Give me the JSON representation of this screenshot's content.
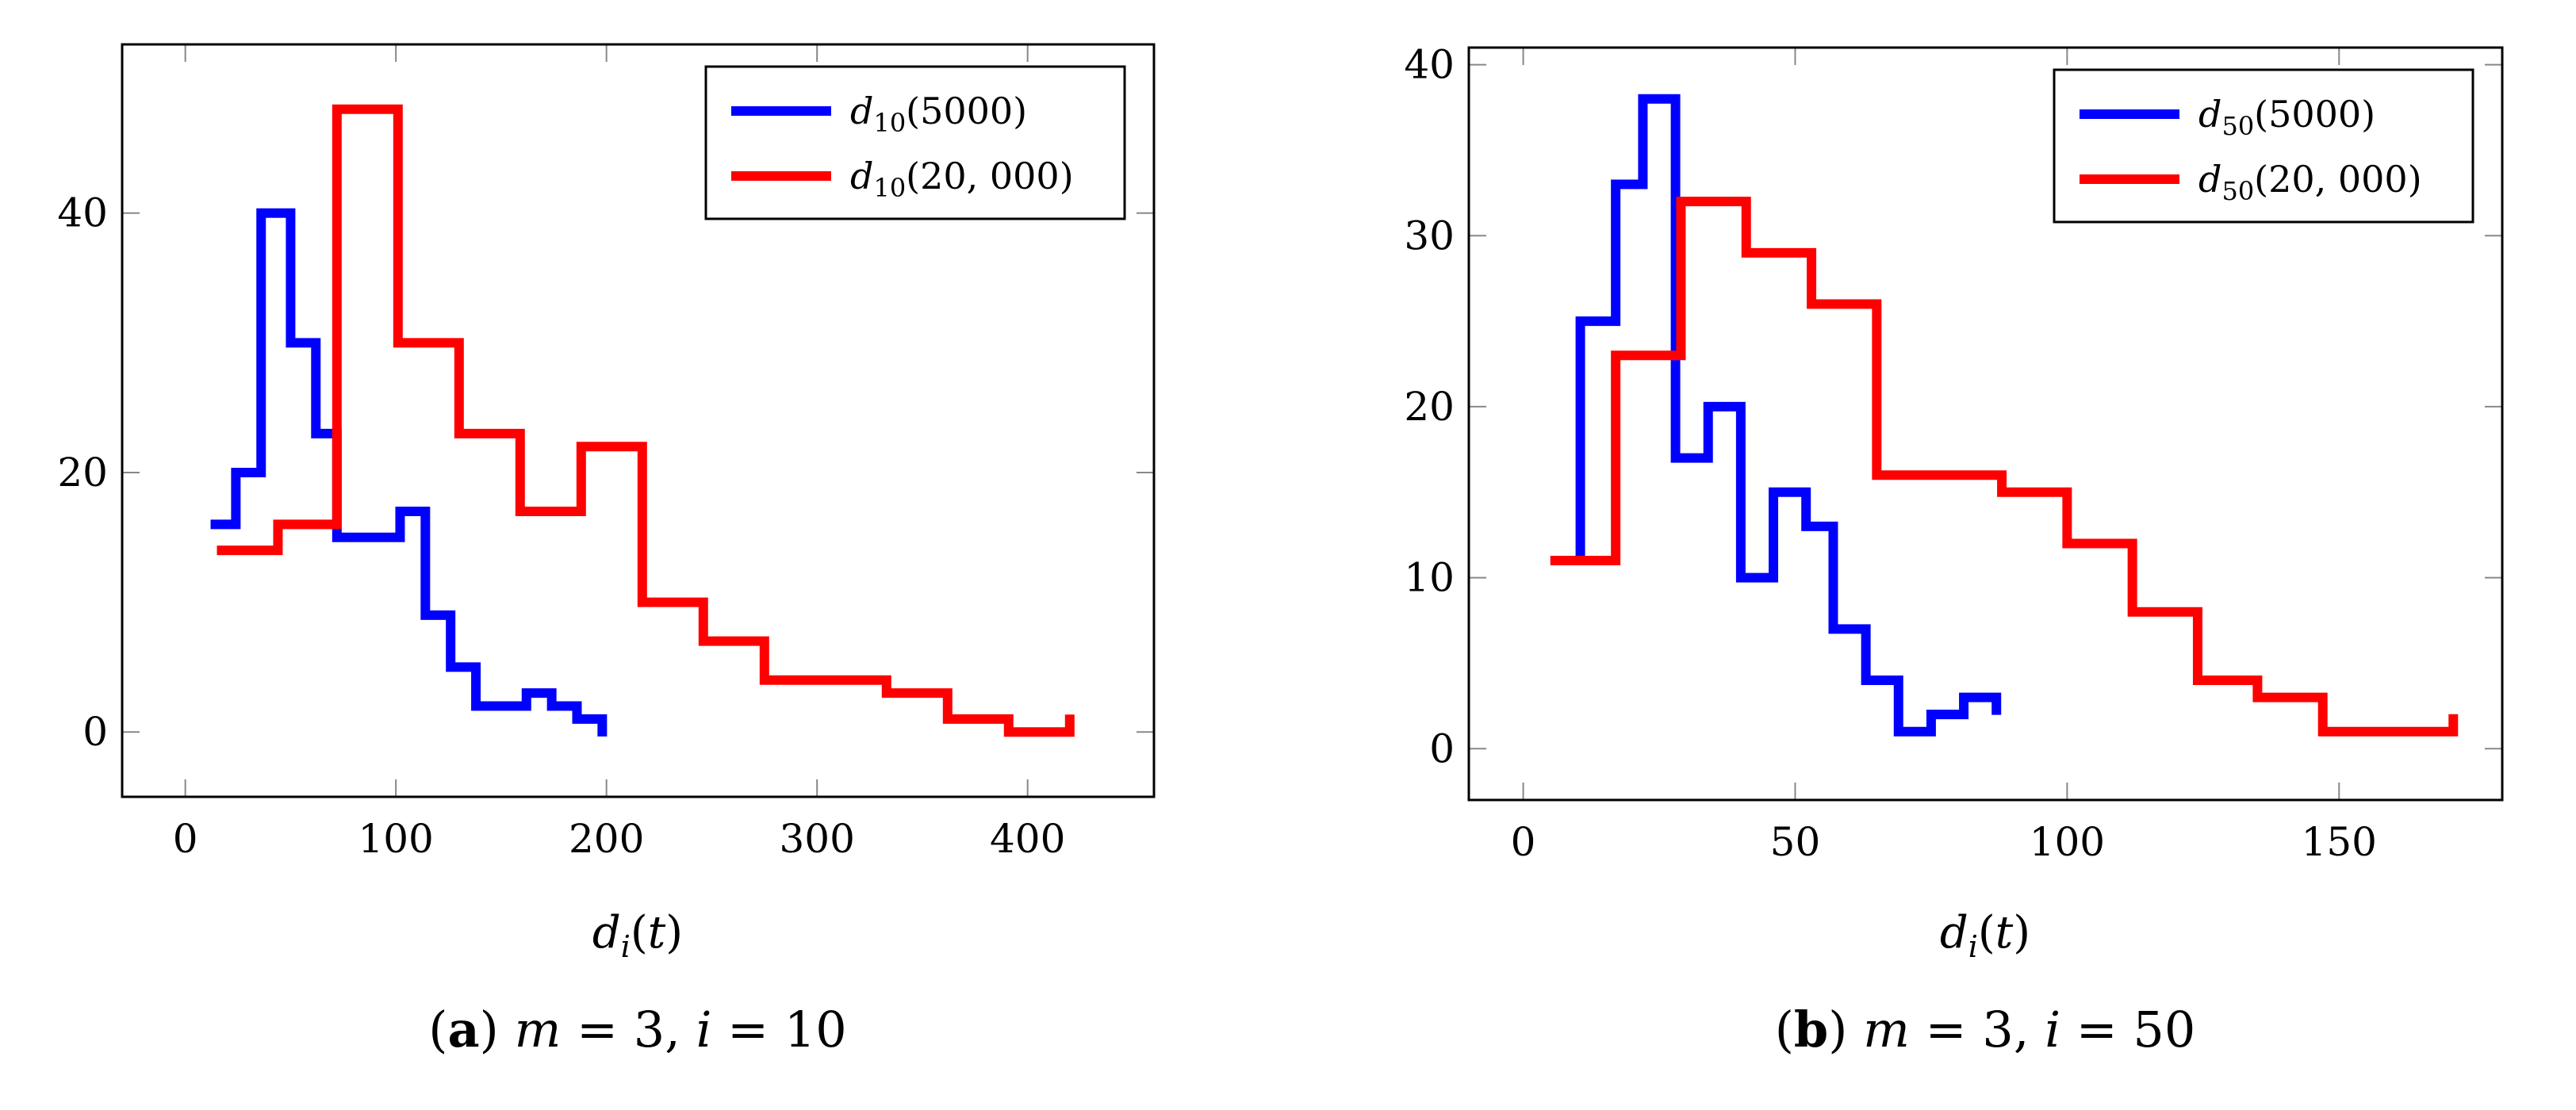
{
  "chart_data": [
    {
      "type": "line",
      "step": true,
      "panel_label": "a",
      "caption_text": "m = 3, i = 10",
      "xlabel": "d_i(t)",
      "ylabel": "",
      "xlim": [
        -30,
        460
      ],
      "ylim": [
        -5,
        53
      ],
      "xticks": [
        0,
        100,
        200,
        300,
        400
      ],
      "yticks": [
        0,
        20,
        40
      ],
      "legend": {
        "placement": "top-right"
      },
      "series": [
        {
          "name": "d_10(5000)",
          "legend_base": "d",
          "legend_sub": "10",
          "legend_arg": "(5000)",
          "color": "#0000ff",
          "edges": [
            12,
            24,
            36,
            50,
            62,
            72,
            84,
            102,
            114,
            126,
            138,
            150,
            162,
            174,
            186,
            198
          ],
          "counts": [
            16,
            20,
            40,
            30,
            23,
            15,
            15,
            17,
            9,
            5,
            2,
            2,
            3,
            2,
            1
          ]
        },
        {
          "name": "d_10(20,000)",
          "legend_base": "d",
          "legend_sub": "10",
          "legend_arg": "(20, 000)",
          "color": "#ff0000",
          "edges": [
            15,
            44,
            72,
            101,
            130,
            159,
            188,
            217,
            246,
            275,
            304,
            333,
            362,
            391,
            420
          ],
          "counts": [
            14,
            16,
            48,
            30,
            23,
            17,
            22,
            10,
            7,
            4,
            4,
            3,
            1,
            0
          ]
        }
      ]
    },
    {
      "type": "line",
      "step": true,
      "panel_label": "b",
      "caption_text": "m = 3, i = 50",
      "xlabel": "d_i(t)",
      "ylabel": "",
      "xlim": [
        -10,
        180
      ],
      "ylim": [
        -3,
        41
      ],
      "xticks": [
        0,
        50,
        100,
        150
      ],
      "yticks": [
        0,
        10,
        20,
        30,
        40
      ],
      "legend": {
        "placement": "top-right"
      },
      "series": [
        {
          "name": "d_50(5000)",
          "legend_base": "d",
          "legend_sub": "50",
          "legend_arg": "(5000)",
          "color": "#0000ff",
          "edges": [
            5,
            10.5,
            17,
            22,
            28,
            34,
            40,
            46,
            52,
            57,
            63,
            69,
            75,
            81,
            87
          ],
          "counts": [
            11,
            25,
            33,
            38,
            17,
            20,
            10,
            15,
            13,
            7,
            4,
            1,
            2,
            3
          ]
        },
        {
          "name": "d_50(20,000)",
          "legend_base": "d",
          "legend_sub": "50",
          "legend_arg": "(20, 000)",
          "color": "#ff0000",
          "edges": [
            5,
            17,
            29,
            41,
            53,
            65,
            76,
            88,
            100,
            112,
            124,
            135,
            147,
            159,
            171
          ],
          "counts": [
            11,
            23,
            32,
            29,
            26,
            16,
            16,
            15,
            12,
            8,
            4,
            3,
            1,
            1
          ]
        }
      ]
    }
  ]
}
